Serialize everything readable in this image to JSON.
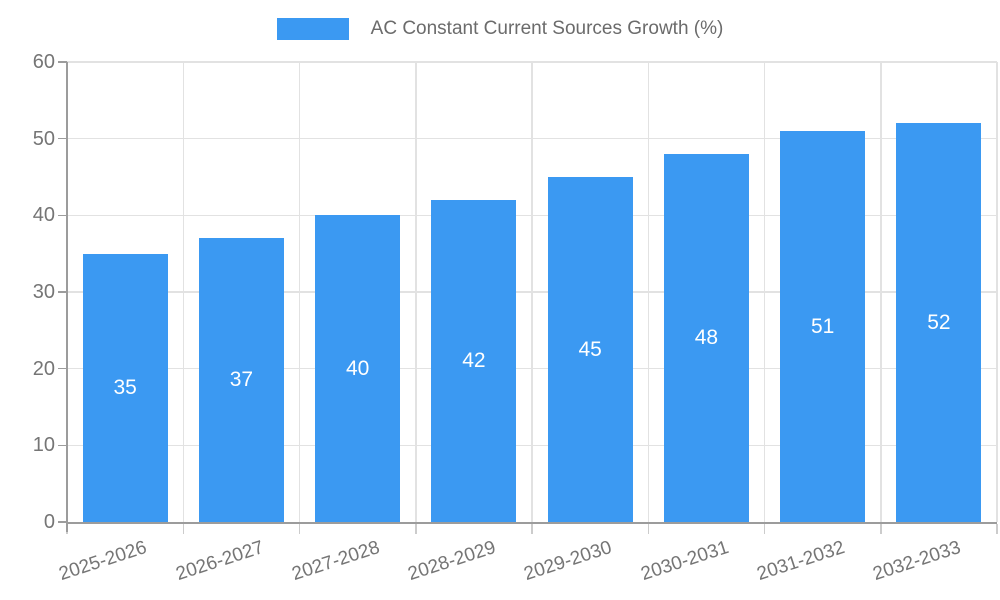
{
  "chart_data": {
    "type": "bar",
    "title": "AC Constant Current Sources Growth (%)",
    "categories": [
      "2025-2026",
      "2026-2027",
      "2027-2028",
      "2028-2029",
      "2029-2030",
      "2030-2031",
      "2031-2032",
      "2032-2033"
    ],
    "values": [
      35,
      37,
      40,
      42,
      45,
      48,
      51,
      52
    ],
    "series": [
      {
        "name": "AC Constant Current Sources Growth (%)",
        "values": [
          35,
          37,
          40,
          42,
          45,
          48,
          51,
          52
        ]
      }
    ],
    "xlabel": "",
    "ylabel": "",
    "ylim": [
      0,
      60
    ],
    "ytick_step": 10,
    "yticks": [
      0,
      10,
      20,
      30,
      40,
      50,
      60
    ],
    "grid": true,
    "legend_position": "top",
    "value_labels": "inside-center",
    "bar_color": "#3B99F2",
    "value_label_color": "#FFFFFF",
    "axis_color": "#9C9C9C",
    "grid_color": "#E2E2E2",
    "tick_label_color": "#757575"
  },
  "legend": {
    "label": "AC Constant Current Sources Growth (%)"
  }
}
